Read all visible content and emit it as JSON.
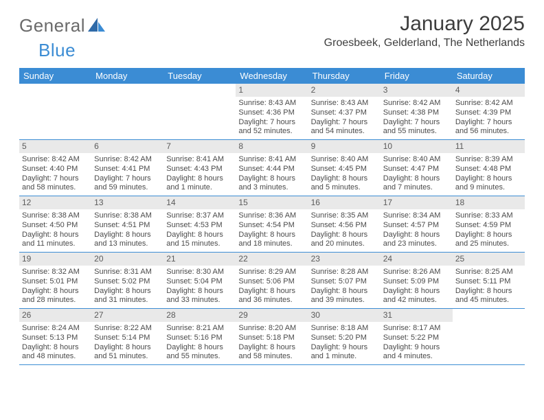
{
  "brand": {
    "part1": "General",
    "part2": "Blue"
  },
  "title": "January 2025",
  "location": "Groesbeek, Gelderland, The Netherlands",
  "colors": {
    "header_bg": "#3b8cd4",
    "header_text": "#ffffff",
    "day_num_bg": "#e9e9e9",
    "text": "#4a4a4a",
    "rule": "#3b8cd4"
  },
  "daysOfWeek": [
    "Sunday",
    "Monday",
    "Tuesday",
    "Wednesday",
    "Thursday",
    "Friday",
    "Saturday"
  ],
  "weeks": [
    [
      null,
      null,
      null,
      {
        "n": "1",
        "sr": "Sunrise: 8:43 AM",
        "ss": "Sunset: 4:36 PM",
        "dl1": "Daylight: 7 hours",
        "dl2": "and 52 minutes."
      },
      {
        "n": "2",
        "sr": "Sunrise: 8:43 AM",
        "ss": "Sunset: 4:37 PM",
        "dl1": "Daylight: 7 hours",
        "dl2": "and 54 minutes."
      },
      {
        "n": "3",
        "sr": "Sunrise: 8:42 AM",
        "ss": "Sunset: 4:38 PM",
        "dl1": "Daylight: 7 hours",
        "dl2": "and 55 minutes."
      },
      {
        "n": "4",
        "sr": "Sunrise: 8:42 AM",
        "ss": "Sunset: 4:39 PM",
        "dl1": "Daylight: 7 hours",
        "dl2": "and 56 minutes."
      }
    ],
    [
      {
        "n": "5",
        "sr": "Sunrise: 8:42 AM",
        "ss": "Sunset: 4:40 PM",
        "dl1": "Daylight: 7 hours",
        "dl2": "and 58 minutes."
      },
      {
        "n": "6",
        "sr": "Sunrise: 8:42 AM",
        "ss": "Sunset: 4:41 PM",
        "dl1": "Daylight: 7 hours",
        "dl2": "and 59 minutes."
      },
      {
        "n": "7",
        "sr": "Sunrise: 8:41 AM",
        "ss": "Sunset: 4:43 PM",
        "dl1": "Daylight: 8 hours",
        "dl2": "and 1 minute."
      },
      {
        "n": "8",
        "sr": "Sunrise: 8:41 AM",
        "ss": "Sunset: 4:44 PM",
        "dl1": "Daylight: 8 hours",
        "dl2": "and 3 minutes."
      },
      {
        "n": "9",
        "sr": "Sunrise: 8:40 AM",
        "ss": "Sunset: 4:45 PM",
        "dl1": "Daylight: 8 hours",
        "dl2": "and 5 minutes."
      },
      {
        "n": "10",
        "sr": "Sunrise: 8:40 AM",
        "ss": "Sunset: 4:47 PM",
        "dl1": "Daylight: 8 hours",
        "dl2": "and 7 minutes."
      },
      {
        "n": "11",
        "sr": "Sunrise: 8:39 AM",
        "ss": "Sunset: 4:48 PM",
        "dl1": "Daylight: 8 hours",
        "dl2": "and 9 minutes."
      }
    ],
    [
      {
        "n": "12",
        "sr": "Sunrise: 8:38 AM",
        "ss": "Sunset: 4:50 PM",
        "dl1": "Daylight: 8 hours",
        "dl2": "and 11 minutes."
      },
      {
        "n": "13",
        "sr": "Sunrise: 8:38 AM",
        "ss": "Sunset: 4:51 PM",
        "dl1": "Daylight: 8 hours",
        "dl2": "and 13 minutes."
      },
      {
        "n": "14",
        "sr": "Sunrise: 8:37 AM",
        "ss": "Sunset: 4:53 PM",
        "dl1": "Daylight: 8 hours",
        "dl2": "and 15 minutes."
      },
      {
        "n": "15",
        "sr": "Sunrise: 8:36 AM",
        "ss": "Sunset: 4:54 PM",
        "dl1": "Daylight: 8 hours",
        "dl2": "and 18 minutes."
      },
      {
        "n": "16",
        "sr": "Sunrise: 8:35 AM",
        "ss": "Sunset: 4:56 PM",
        "dl1": "Daylight: 8 hours",
        "dl2": "and 20 minutes."
      },
      {
        "n": "17",
        "sr": "Sunrise: 8:34 AM",
        "ss": "Sunset: 4:57 PM",
        "dl1": "Daylight: 8 hours",
        "dl2": "and 23 minutes."
      },
      {
        "n": "18",
        "sr": "Sunrise: 8:33 AM",
        "ss": "Sunset: 4:59 PM",
        "dl1": "Daylight: 8 hours",
        "dl2": "and 25 minutes."
      }
    ],
    [
      {
        "n": "19",
        "sr": "Sunrise: 8:32 AM",
        "ss": "Sunset: 5:01 PM",
        "dl1": "Daylight: 8 hours",
        "dl2": "and 28 minutes."
      },
      {
        "n": "20",
        "sr": "Sunrise: 8:31 AM",
        "ss": "Sunset: 5:02 PM",
        "dl1": "Daylight: 8 hours",
        "dl2": "and 31 minutes."
      },
      {
        "n": "21",
        "sr": "Sunrise: 8:30 AM",
        "ss": "Sunset: 5:04 PM",
        "dl1": "Daylight: 8 hours",
        "dl2": "and 33 minutes."
      },
      {
        "n": "22",
        "sr": "Sunrise: 8:29 AM",
        "ss": "Sunset: 5:06 PM",
        "dl1": "Daylight: 8 hours",
        "dl2": "and 36 minutes."
      },
      {
        "n": "23",
        "sr": "Sunrise: 8:28 AM",
        "ss": "Sunset: 5:07 PM",
        "dl1": "Daylight: 8 hours",
        "dl2": "and 39 minutes."
      },
      {
        "n": "24",
        "sr": "Sunrise: 8:26 AM",
        "ss": "Sunset: 5:09 PM",
        "dl1": "Daylight: 8 hours",
        "dl2": "and 42 minutes."
      },
      {
        "n": "25",
        "sr": "Sunrise: 8:25 AM",
        "ss": "Sunset: 5:11 PM",
        "dl1": "Daylight: 8 hours",
        "dl2": "and 45 minutes."
      }
    ],
    [
      {
        "n": "26",
        "sr": "Sunrise: 8:24 AM",
        "ss": "Sunset: 5:13 PM",
        "dl1": "Daylight: 8 hours",
        "dl2": "and 48 minutes."
      },
      {
        "n": "27",
        "sr": "Sunrise: 8:22 AM",
        "ss": "Sunset: 5:14 PM",
        "dl1": "Daylight: 8 hours",
        "dl2": "and 51 minutes."
      },
      {
        "n": "28",
        "sr": "Sunrise: 8:21 AM",
        "ss": "Sunset: 5:16 PM",
        "dl1": "Daylight: 8 hours",
        "dl2": "and 55 minutes."
      },
      {
        "n": "29",
        "sr": "Sunrise: 8:20 AM",
        "ss": "Sunset: 5:18 PM",
        "dl1": "Daylight: 8 hours",
        "dl2": "and 58 minutes."
      },
      {
        "n": "30",
        "sr": "Sunrise: 8:18 AM",
        "ss": "Sunset: 5:20 PM",
        "dl1": "Daylight: 9 hours",
        "dl2": "and 1 minute."
      },
      {
        "n": "31",
        "sr": "Sunrise: 8:17 AM",
        "ss": "Sunset: 5:22 PM",
        "dl1": "Daylight: 9 hours",
        "dl2": "and 4 minutes."
      },
      null
    ]
  ]
}
